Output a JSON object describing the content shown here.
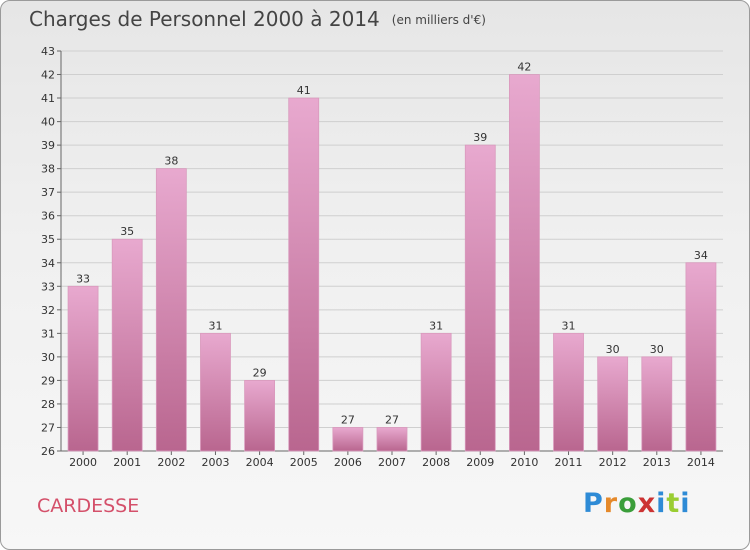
{
  "header": {
    "title": "Charges de Personnel 2000 à 2014",
    "subtitle": "(en milliers d'€)"
  },
  "footer": {
    "commune": "CARDESSE",
    "logo_text": "Proxiti"
  },
  "colors": {
    "bar_top": "#e8a9cf",
    "bar_bottom": "#b9668f",
    "commune": "#d4506a"
  },
  "chart_data": {
    "type": "bar",
    "title": "Charges de Personnel 2000 à 2014",
    "subtitle": "(en milliers d'€)",
    "xlabel": "",
    "ylabel": "",
    "categories": [
      "2000",
      "2001",
      "2002",
      "2003",
      "2004",
      "2005",
      "2006",
      "2007",
      "2008",
      "2009",
      "2010",
      "2011",
      "2012",
      "2013",
      "2014"
    ],
    "values": [
      33,
      35,
      38,
      31,
      29,
      41,
      27,
      27,
      31,
      39,
      42,
      31,
      30,
      30,
      34
    ],
    "ylim": [
      26,
      43
    ],
    "yticks": [
      26,
      27,
      28,
      29,
      30,
      31,
      32,
      33,
      34,
      35,
      36,
      37,
      38,
      39,
      40,
      41,
      42,
      43
    ],
    "grid": true
  }
}
